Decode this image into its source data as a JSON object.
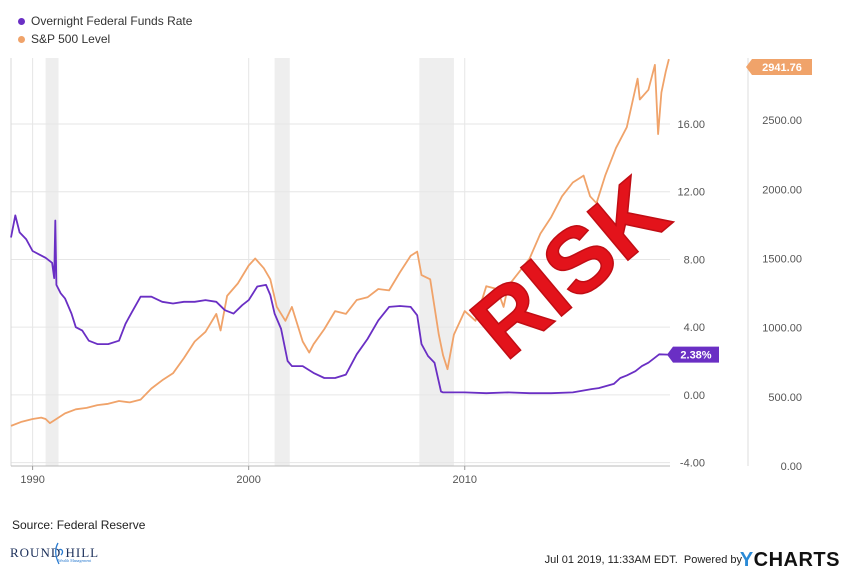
{
  "chart_data": {
    "type": "line",
    "legend": {
      "position": "top-left"
    },
    "x_axis": {
      "range": [
        1989,
        2019.5
      ],
      "ticks": [
        {
          "value": 1990,
          "label": "1990"
        },
        {
          "value": 2000,
          "label": "2000"
        },
        {
          "value": 2010,
          "label": "2010"
        }
      ]
    },
    "y_axis_left": {
      "range": [
        -4.2,
        19.9
      ],
      "ticks": [
        {
          "value": 16,
          "label": "16.00"
        },
        {
          "value": 12,
          "label": "12.00"
        },
        {
          "value": 8,
          "label": "8.00"
        },
        {
          "value": 4,
          "label": "4.00"
        },
        {
          "value": 0,
          "label": "0.00"
        },
        {
          "value": -4,
          "label": "-4.00"
        }
      ]
    },
    "y_axis_right": {
      "range": [
        0,
        2950
      ],
      "ticks": [
        {
          "value": 2500,
          "label": "2500.00"
        },
        {
          "value": 2000,
          "label": "2000.00"
        },
        {
          "value": 1500,
          "label": "1500.00"
        },
        {
          "value": 1000,
          "label": "1000.00"
        },
        {
          "value": 500,
          "label": "500.00"
        },
        {
          "value": 0,
          "label": "0.00"
        }
      ]
    },
    "recessions": [
      [
        1990.6,
        1991.2
      ],
      [
        2001.2,
        2001.9
      ],
      [
        2007.9,
        2009.5
      ]
    ],
    "series": [
      {
        "name": "Overnight Federal Funds Rate",
        "color": "#6a2fc4",
        "axis": "left",
        "last_label": "2.38%",
        "x": [
          1989.0,
          1989.2,
          1989.4,
          1989.7,
          1990.0,
          1990.3,
          1990.6,
          1990.9,
          1991.0,
          1991.05,
          1991.1,
          1991.3,
          1991.5,
          1991.8,
          1992.0,
          1992.3,
          1992.6,
          1993.0,
          1993.5,
          1994.0,
          1994.3,
          1994.6,
          1995.0,
          1995.5,
          1996.0,
          1996.5,
          1997.0,
          1997.5,
          1998.0,
          1998.5,
          1998.9,
          1999.3,
          1999.7,
          2000.0,
          2000.4,
          2000.8,
          2001.0,
          2001.2,
          2001.5,
          2001.8,
          2002.0,
          2002.5,
          2003.0,
          2003.5,
          2004.0,
          2004.5,
          2005.0,
          2005.5,
          2006.0,
          2006.5,
          2007.0,
          2007.5,
          2007.8,
          2008.0,
          2008.3,
          2008.6,
          2008.9,
          2009.0,
          2010.0,
          2011.0,
          2012.0,
          2013.0,
          2014.0,
          2015.0,
          2015.9,
          2016.2,
          2016.9,
          2017.2,
          2017.5,
          2017.9,
          2018.2,
          2018.5,
          2018.8,
          2019.0,
          2019.4
        ],
        "values": [
          9.3,
          10.6,
          9.6,
          9.2,
          8.5,
          8.3,
          8.1,
          7.8,
          6.9,
          10.3,
          6.5,
          6.0,
          5.7,
          4.8,
          4.0,
          3.8,
          3.2,
          3.0,
          3.0,
          3.2,
          4.2,
          4.9,
          5.8,
          5.8,
          5.5,
          5.4,
          5.5,
          5.5,
          5.6,
          5.5,
          5.0,
          4.8,
          5.3,
          5.6,
          6.4,
          6.5,
          5.9,
          4.8,
          3.9,
          2.0,
          1.7,
          1.7,
          1.3,
          1.0,
          1.0,
          1.2,
          2.4,
          3.3,
          4.4,
          5.2,
          5.25,
          5.2,
          4.7,
          3.0,
          2.3,
          1.9,
          0.2,
          0.15,
          0.15,
          0.1,
          0.15,
          0.1,
          0.1,
          0.15,
          0.35,
          0.4,
          0.65,
          1.0,
          1.15,
          1.4,
          1.7,
          1.9,
          2.2,
          2.4,
          2.38
        ]
      },
      {
        "name": "S&P 500 Level",
        "color": "#f0a36a",
        "axis": "right",
        "last_label": "2941.76",
        "x": [
          1989.0,
          1989.5,
          1990.0,
          1990.4,
          1990.6,
          1990.8,
          1991.0,
          1991.5,
          1992.0,
          1992.5,
          1993.0,
          1993.5,
          1994.0,
          1994.5,
          1995.0,
          1995.5,
          1996.0,
          1996.5,
          1997.0,
          1997.5,
          1998.0,
          1998.5,
          1998.7,
          1999.0,
          1999.5,
          2000.0,
          2000.3,
          2000.7,
          2001.0,
          2001.3,
          2001.7,
          2002.0,
          2002.5,
          2002.8,
          2003.0,
          2003.5,
          2004.0,
          2004.5,
          2005.0,
          2005.5,
          2006.0,
          2006.5,
          2007.0,
          2007.5,
          2007.8,
          2008.0,
          2008.4,
          2008.8,
          2009.0,
          2009.2,
          2009.5,
          2010.0,
          2010.5,
          2011.0,
          2011.5,
          2011.8,
          2012.0,
          2012.5,
          2013.0,
          2013.5,
          2014.0,
          2014.5,
          2015.0,
          2015.5,
          2015.8,
          2016.1,
          2016.5,
          2017.0,
          2017.5,
          2018.0,
          2018.1,
          2018.5,
          2018.8,
          2018.95,
          2019.1,
          2019.3,
          2019.45
        ],
        "values": [
          290,
          320,
          340,
          350,
          340,
          310,
          330,
          380,
          410,
          420,
          440,
          450,
          470,
          460,
          480,
          560,
          620,
          670,
          780,
          900,
          970,
          1100,
          980,
          1230,
          1320,
          1450,
          1500,
          1430,
          1350,
          1150,
          1050,
          1150,
          900,
          820,
          880,
          990,
          1120,
          1100,
          1200,
          1220,
          1280,
          1270,
          1400,
          1520,
          1550,
          1380,
          1350,
          950,
          800,
          700,
          950,
          1120,
          1050,
          1300,
          1280,
          1150,
          1300,
          1400,
          1500,
          1680,
          1800,
          1950,
          2050,
          2100,
          1950,
          1900,
          2100,
          2300,
          2450,
          2800,
          2650,
          2720,
          2900,
          2400,
          2700,
          2850,
          2941.76
        ]
      }
    ],
    "annotation": "RISK"
  },
  "footer": {
    "source": "Source: Federal Reserve",
    "timestamp": "Jul 01 2019, 11:33AM EDT.",
    "powered": "Powered by",
    "brand_y": "Y",
    "brand_rest": "CHARTS"
  },
  "logo": {
    "text": "ROUND HILL",
    "sub": "Wealth Management"
  }
}
